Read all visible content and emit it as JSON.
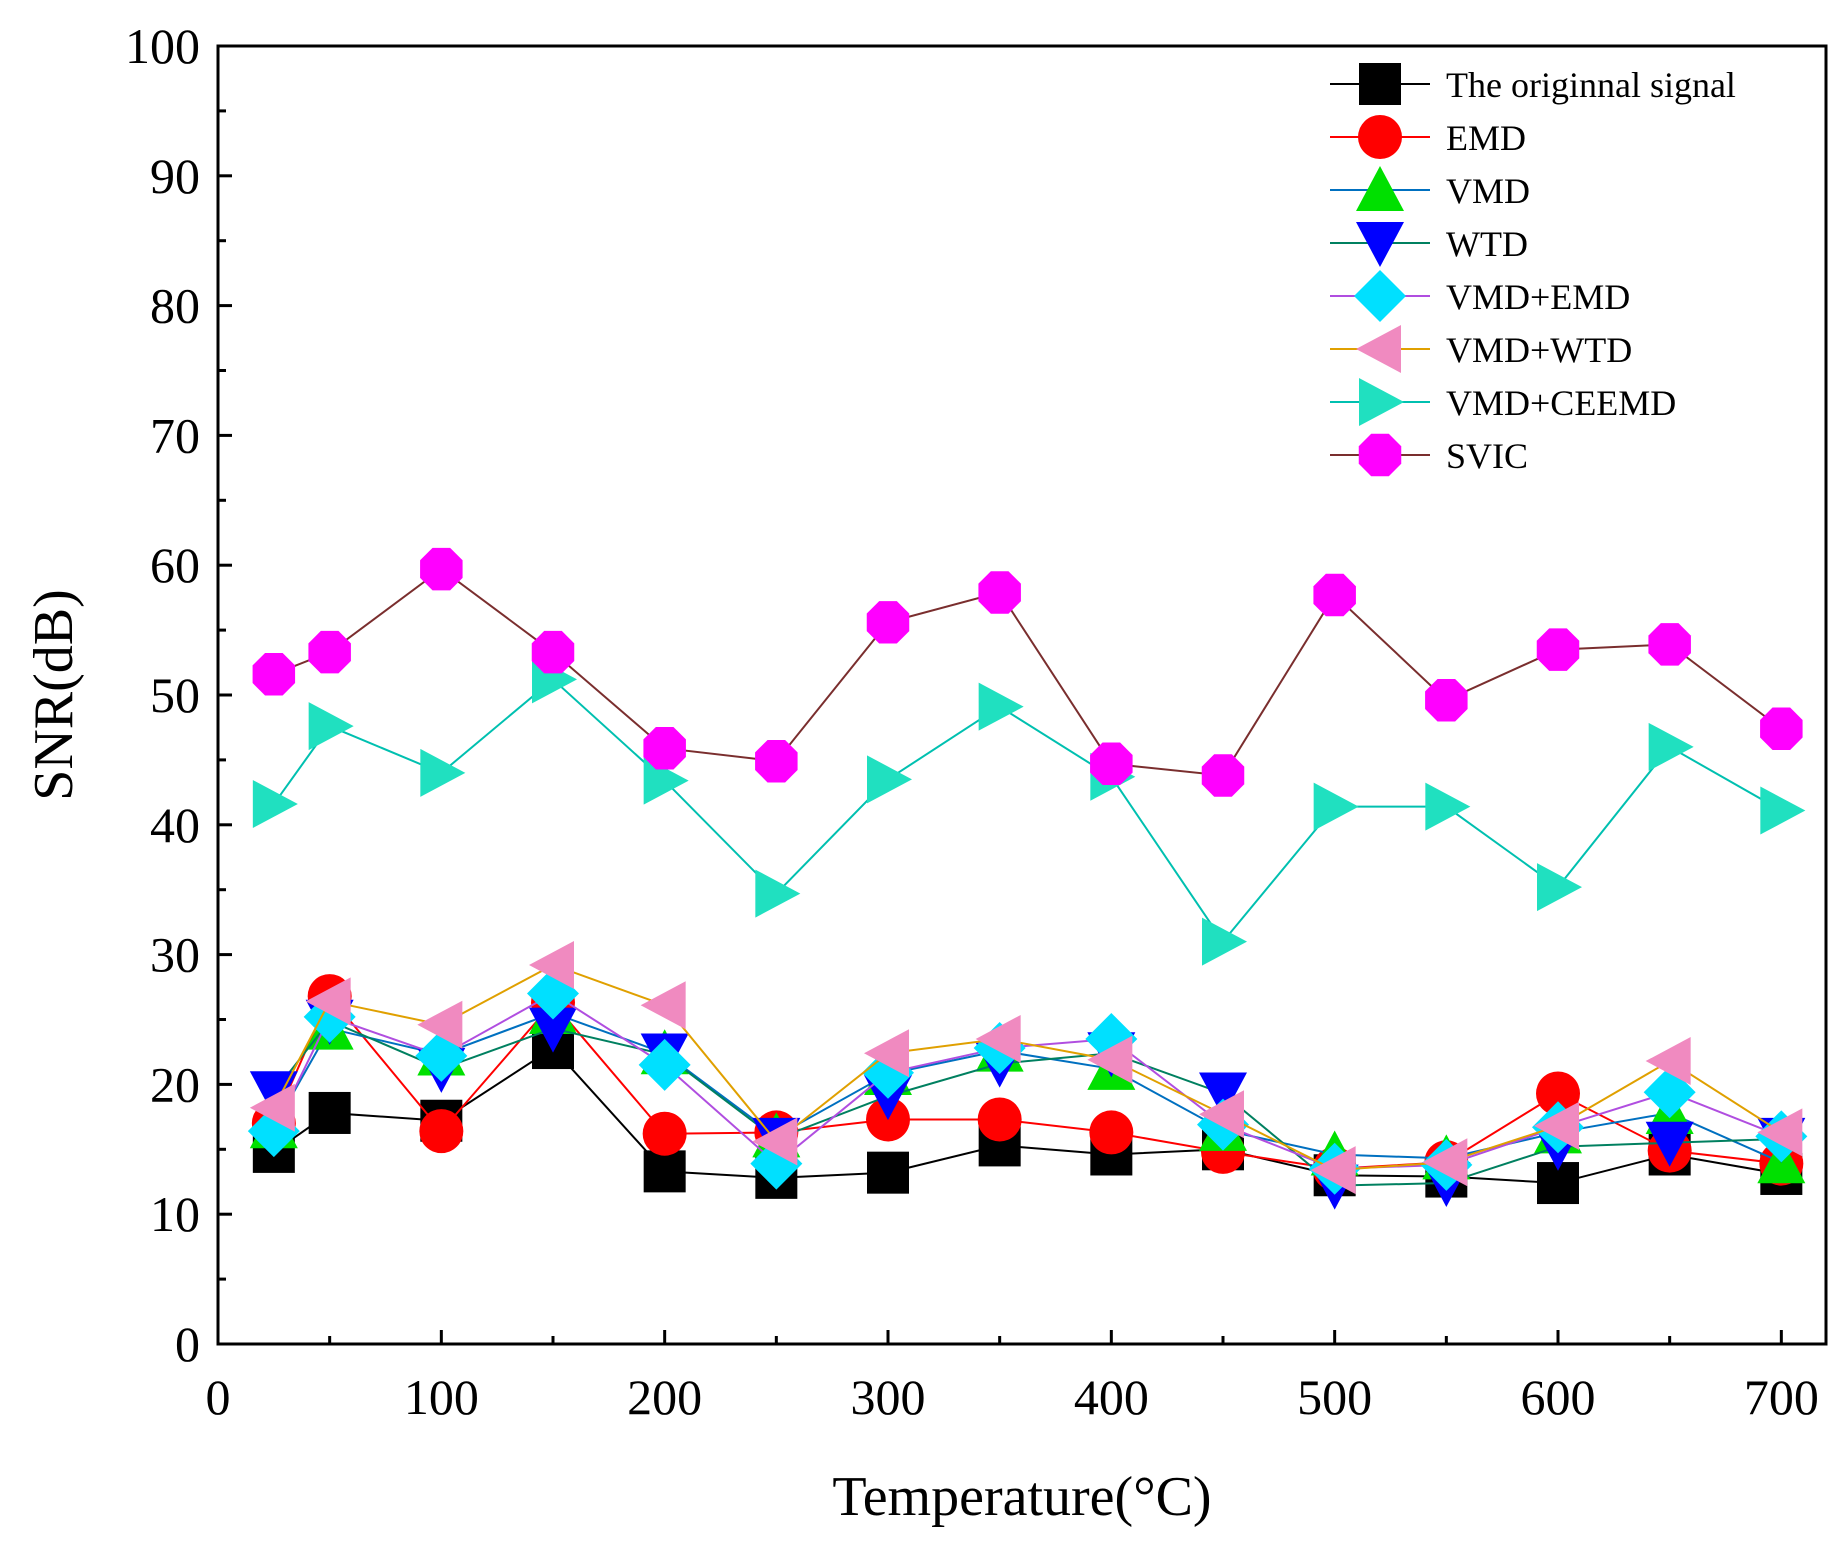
{
  "chart_data": {
    "type": "line",
    "title": "",
    "xlabel": "Temperature(°C)",
    "ylabel": "SNR(dB)",
    "xlim": [
      0,
      720
    ],
    "ylim": [
      0,
      100
    ],
    "xticks": [
      0,
      100,
      200,
      300,
      400,
      500,
      600,
      700
    ],
    "yticks": [
      0,
      10,
      20,
      30,
      40,
      50,
      60,
      70,
      80,
      90,
      100
    ],
    "grid": false,
    "legend_position": "top-right",
    "x": [
      25,
      50,
      100,
      150,
      200,
      250,
      300,
      350,
      400,
      450,
      500,
      550,
      600,
      650,
      700
    ],
    "series": [
      {
        "name": "The originnal signal",
        "color": "#000000",
        "marker": "square",
        "values": [
          14.8,
          17.8,
          17.2,
          22.8,
          13.3,
          12.8,
          13.2,
          15.3,
          14.6,
          15.0,
          13.0,
          12.9,
          12.4,
          14.6,
          13.1
        ]
      },
      {
        "name": "EMD",
        "color": "#ff0000",
        "marker": "circle",
        "values": [
          17.0,
          26.8,
          16.4,
          26.3,
          16.2,
          16.3,
          17.3,
          17.3,
          16.3,
          14.8,
          13.5,
          14.0,
          19.3,
          14.9,
          13.9
        ]
      },
      {
        "name": "VMD",
        "color": "#0070c0",
        "marker": "triangle-up",
        "values": [
          16.7,
          24.3,
          22.3,
          25.5,
          22.4,
          16.0,
          20.8,
          22.6,
          21.2,
          16.5,
          14.6,
          14.3,
          16.3,
          17.8,
          14.0
        ]
      },
      {
        "name": "WTD",
        "color": "#008060",
        "marker": "triangle-down",
        "values": [
          19.4,
          24.9,
          21.2,
          24.3,
          22.3,
          15.8,
          19.1,
          21.6,
          22.4,
          19.3,
          12.2,
          12.4,
          15.2,
          15.5,
          15.8
        ]
      },
      {
        "name": "VMD+EMD",
        "color": "#b04ee0",
        "marker": "diamond",
        "values": [
          16.4,
          25.2,
          22.2,
          27.0,
          21.5,
          13.9,
          20.9,
          22.8,
          23.5,
          16.9,
          13.5,
          13.8,
          16.7,
          19.4,
          16.0
        ]
      },
      {
        "name": "VMD+WTD",
        "color": "#e0a000",
        "marker": "triangle-left",
        "values": [
          18.2,
          26.4,
          24.6,
          29.2,
          26.1,
          15.6,
          22.4,
          23.5,
          21.9,
          17.7,
          13.4,
          14.0,
          16.8,
          21.8,
          16.3
        ]
      },
      {
        "name": "VMD+CEEMD",
        "color": "#00c0b0",
        "marker": "triangle-right",
        "values": [
          41.6,
          47.6,
          44.0,
          51.2,
          43.4,
          34.7,
          43.5,
          49.1,
          43.7,
          31.0,
          41.4,
          41.4,
          35.2,
          46.0,
          41.1
        ]
      },
      {
        "name": "SVIC",
        "color": "#7a2e2e",
        "marker": "octagon",
        "marker_color": "#ff00ff",
        "values": [
          51.6,
          53.3,
          59.7,
          53.3,
          45.9,
          44.9,
          55.6,
          57.9,
          44.7,
          43.8,
          57.7,
          49.6,
          53.5,
          53.9,
          47.4
        ]
      }
    ]
  }
}
